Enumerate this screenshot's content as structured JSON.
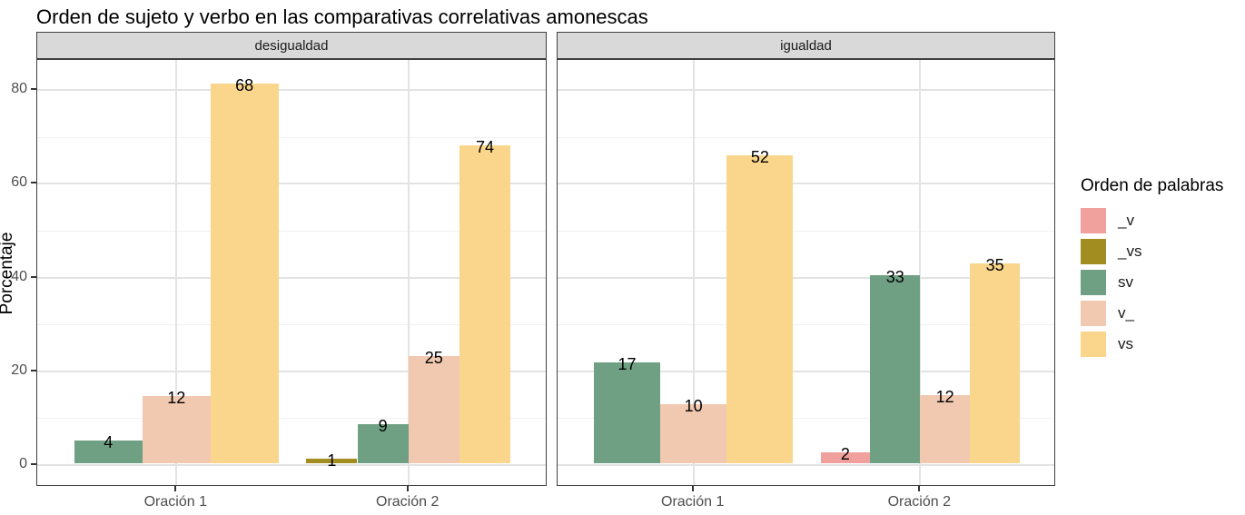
{
  "title": "Orden de sujeto y verbo en las comparativas correlativas amonescas",
  "y_axis": {
    "label": "Porcentaje",
    "ticks": [
      0,
      20,
      40,
      60,
      80
    ],
    "minor_ticks": [
      10,
      30,
      50,
      70
    ]
  },
  "x_axis": {
    "categories": [
      "Oración 1",
      "Oración 2"
    ]
  },
  "legend": {
    "title": "Orden de palabras",
    "items": [
      {
        "label": "_v",
        "color": "#F0A09D"
      },
      {
        "label": "_vs",
        "color": "#A18D20"
      },
      {
        "label": "sv",
        "color": "#6FA083"
      },
      {
        "label": "v_",
        "color": "#F1C8B0"
      },
      {
        "label": "vs",
        "color": "#FAD68C"
      }
    ]
  },
  "colors": {
    "strip_background": "#D9D9D9",
    "panel_border": "#404040",
    "grid_major": "#E3E3E3",
    "grid_minor": "#F1F1F1",
    "axis_text": "#4D4D4D"
  },
  "chart_data": {
    "type": "bar",
    "title": "Orden de sujeto y verbo en las comparativas correlativas amonescas",
    "xlabel": "",
    "ylabel": "Porcentaje",
    "ylim": [
      0,
      86
    ],
    "grid": "on",
    "legend_position": "right",
    "note": "bar heights are percentages; printed labels are raw counts",
    "facets": [
      {
        "label": "desigualdad",
        "groups": [
          {
            "category": "Oración 1",
            "bars": [
              {
                "series": "sv",
                "count": 4,
                "pct": 4.8
              },
              {
                "series": "v_",
                "count": 12,
                "pct": 14.3
              },
              {
                "series": "vs",
                "count": 68,
                "pct": 81.0
              }
            ]
          },
          {
            "category": "Oración 2",
            "bars": [
              {
                "series": "_vs",
                "count": 1,
                "pct": 0.9
              },
              {
                "series": "sv",
                "count": 9,
                "pct": 8.3
              },
              {
                "series": "v_",
                "count": 25,
                "pct": 22.9
              },
              {
                "series": "vs",
                "count": 74,
                "pct": 67.9
              }
            ]
          }
        ]
      },
      {
        "label": "igualdad",
        "groups": [
          {
            "category": "Oración 1",
            "bars": [
              {
                "series": "sv",
                "count": 17,
                "pct": 21.5
              },
              {
                "series": "v_",
                "count": 10,
                "pct": 12.7
              },
              {
                "series": "vs",
                "count": 52,
                "pct": 65.8
              }
            ]
          },
          {
            "category": "Oración 2",
            "bars": [
              {
                "series": "_v",
                "count": 2,
                "pct": 2.4
              },
              {
                "series": "sv",
                "count": 33,
                "pct": 40.2
              },
              {
                "series": "v_",
                "count": 12,
                "pct": 14.6
              },
              {
                "series": "vs",
                "count": 35,
                "pct": 42.7
              }
            ]
          }
        ]
      }
    ]
  }
}
